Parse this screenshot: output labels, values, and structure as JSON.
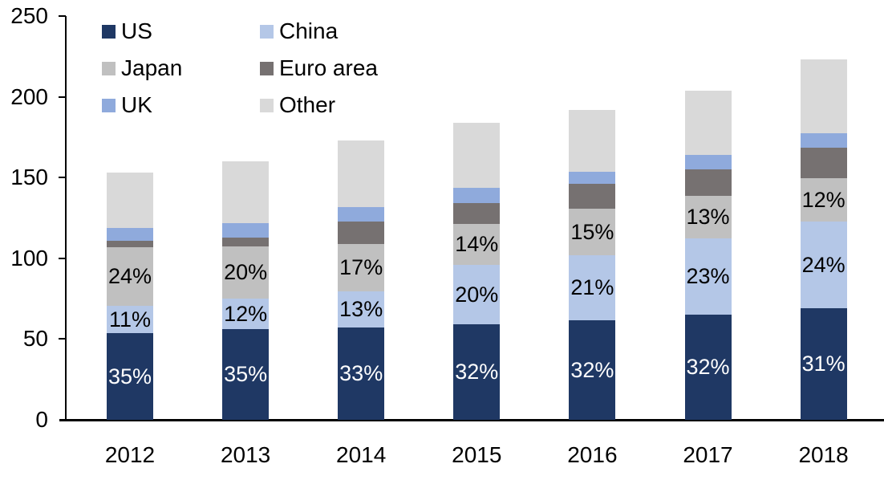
{
  "chart_data": {
    "type": "bar",
    "stacked": true,
    "title": "",
    "xlabel": "",
    "ylabel": "",
    "categories": [
      "2012",
      "2013",
      "2014",
      "2015",
      "2016",
      "2017",
      "2018"
    ],
    "series": [
      {
        "name": "US",
        "color": "#1F3864",
        "label_color": "#FFFFFF",
        "values": [
          53.6,
          56.0,
          57.1,
          58.9,
          61.4,
          65.3,
          69.1
        ],
        "labels": [
          "35%",
          "35%",
          "33%",
          "32%",
          "32%",
          "32%",
          "31%"
        ]
      },
      {
        "name": "China",
        "color": "#B4C7E7",
        "label_color": "#000000",
        "values": [
          16.8,
          19.2,
          22.5,
          36.8,
          40.3,
          46.9,
          53.5
        ],
        "labels": [
          "11%",
          "12%",
          "13%",
          "20%",
          "21%",
          "23%",
          "24%"
        ]
      },
      {
        "name": "Japan",
        "color": "#C0C0C0",
        "label_color": "#000000",
        "values": [
          36.7,
          32.0,
          29.4,
          25.8,
          28.8,
          26.5,
          26.8
        ],
        "labels": [
          "24%",
          "20%",
          "17%",
          "14%",
          "15%",
          "13%",
          "12%"
        ]
      },
      {
        "name": "Euro area",
        "color": "#767171",
        "label_color": null,
        "values": [
          3.8,
          5.6,
          13.8,
          12.9,
          15.4,
          16.3,
          19.0
        ],
        "labels": null
      },
      {
        "name": "UK",
        "color": "#8FAADC",
        "label_color": null,
        "values": [
          7.7,
          8.8,
          8.7,
          9.2,
          7.7,
          9.2,
          8.9
        ],
        "labels": null
      },
      {
        "name": "Other",
        "color": "#D9D9D9",
        "label_color": null,
        "values": [
          34.4,
          38.4,
          41.5,
          40.4,
          38.4,
          39.8,
          45.7
        ],
        "labels": null
      }
    ],
    "stack_order_bottom_to_top": [
      "US",
      "China",
      "Japan",
      "Euro area",
      "UK",
      "Other"
    ],
    "approx_totals": [
      153,
      160,
      173,
      184,
      192,
      204,
      223
    ],
    "y_axis": {
      "min": 0,
      "max": 250,
      "ticks": [
        0,
        50,
        100,
        150,
        200,
        250
      ]
    },
    "grid": false,
    "legend": {
      "position": "top-left",
      "columns": 2,
      "entries": [
        "US",
        "China",
        "Japan",
        "Euro area",
        "UK",
        "Other"
      ]
    },
    "colors": {
      "axis": "#000000",
      "background": "#FFFFFF"
    }
  }
}
